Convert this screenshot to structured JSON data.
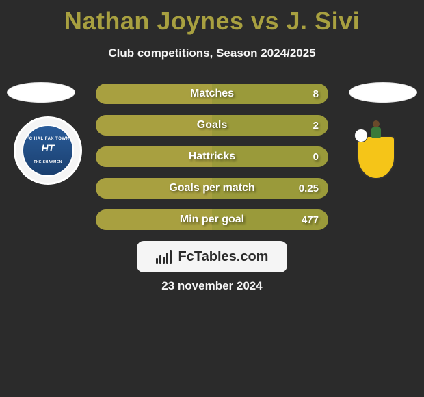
{
  "colors": {
    "page_bg": "#2b2b2b",
    "text_primary": "#f5f5f5",
    "title_color": "#a8a040",
    "bar_left": "#a8a040",
    "bar_right": "#9a9a3a",
    "brand_bg": "#f5f5f5",
    "brand_icon": "#2b2b2b",
    "brand_text": "#2b2b2b"
  },
  "header": {
    "title": "Nathan Joynes vs J. Sivi",
    "subtitle": "Club competitions, Season 2024/2025"
  },
  "players": {
    "left": {
      "name": "Nathan Joynes",
      "club": "FC Halifax Town"
    },
    "right": {
      "name": "J. Sivi",
      "club": "Sutton United"
    }
  },
  "bars": {
    "left_fraction": 0.5,
    "label_color": "#ffffff",
    "rows": [
      {
        "label": "Matches",
        "left": "",
        "right": "8"
      },
      {
        "label": "Goals",
        "left": "",
        "right": "2"
      },
      {
        "label": "Hattricks",
        "left": "",
        "right": "0"
      },
      {
        "label": "Goals per match",
        "left": "",
        "right": "0.25"
      },
      {
        "label": "Min per goal",
        "left": "",
        "right": "477"
      }
    ]
  },
  "brand": {
    "name": "FcTables.com",
    "icon": "bar-chart-icon"
  },
  "footer": {
    "date": "23 november 2024"
  }
}
